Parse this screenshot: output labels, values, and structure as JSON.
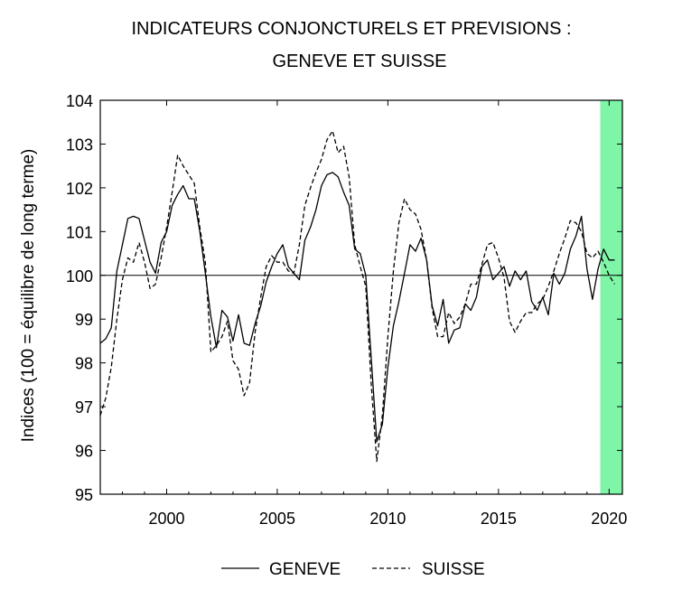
{
  "chart_data": {
    "type": "line",
    "title": "INDICATEURS CONJONCTURELS ET PREVISIONS :",
    "subtitle": "GENEVE ET SUISSE",
    "ylabel": "Indices (100 = équilibre de long terme)",
    "xlabel": "",
    "xlim": [
      1997,
      2020.6
    ],
    "ylim": [
      95,
      104
    ],
    "x_ticks": [
      "2000",
      "2005",
      "2010",
      "2015",
      "2020"
    ],
    "y_ticks": [
      "95",
      "96",
      "97",
      "98",
      "99",
      "100",
      "101",
      "102",
      "103",
      "104"
    ],
    "reference_line": 100,
    "forecast_band": [
      2019.6,
      2020.6
    ],
    "forecast_band_color": "#7ff5a8",
    "grid": false,
    "legend_position": "bottom-center",
    "series": [
      {
        "name": "GENEVE",
        "style": "solid",
        "color": "#000000",
        "x": [
          1997.0,
          1997.25,
          1997.5,
          1997.75,
          1998.0,
          1998.25,
          1998.5,
          1998.75,
          1999.0,
          1999.25,
          1999.5,
          1999.75,
          2000.0,
          2000.25,
          2000.5,
          2000.75,
          2001.0,
          2001.25,
          2001.5,
          2001.75,
          2002.0,
          2002.25,
          2002.5,
          2002.75,
          2003.0,
          2003.25,
          2003.5,
          2003.75,
          2004.0,
          2004.25,
          2004.5,
          2004.75,
          2005.0,
          2005.25,
          2005.5,
          2005.75,
          2006.0,
          2006.25,
          2006.5,
          2006.75,
          2007.0,
          2007.25,
          2007.5,
          2007.75,
          2008.0,
          2008.25,
          2008.5,
          2008.75,
          2009.0,
          2009.25,
          2009.5,
          2009.75,
          2010.0,
          2010.25,
          2010.5,
          2010.75,
          2011.0,
          2011.25,
          2011.5,
          2011.75,
          2012.0,
          2012.25,
          2012.5,
          2012.75,
          2013.0,
          2013.25,
          2013.5,
          2013.75,
          2014.0,
          2014.25,
          2014.5,
          2014.75,
          2015.0,
          2015.25,
          2015.5,
          2015.75,
          2016.0,
          2016.25,
          2016.5,
          2016.75,
          2017.0,
          2017.25,
          2017.5,
          2017.75,
          2018.0,
          2018.25,
          2018.5,
          2018.75,
          2019.0,
          2019.25,
          2019.5,
          2019.75,
          2020.0,
          2020.25
        ],
        "values": [
          98.45,
          98.55,
          98.8,
          100.1,
          100.7,
          101.3,
          101.35,
          101.3,
          100.8,
          100.3,
          100.05,
          100.75,
          101.0,
          101.6,
          101.85,
          102.05,
          101.75,
          101.75,
          101.0,
          100.05,
          99.05,
          98.35,
          99.2,
          99.05,
          98.5,
          99.1,
          98.45,
          98.4,
          98.9,
          99.3,
          99.85,
          100.2,
          100.5,
          100.7,
          100.2,
          100.05,
          99.9,
          100.8,
          101.1,
          101.5,
          102.05,
          102.3,
          102.35,
          102.25,
          101.9,
          101.6,
          100.6,
          100.5,
          100.0,
          98.1,
          96.2,
          96.6,
          97.9,
          98.85,
          99.4,
          100.05,
          100.7,
          100.55,
          100.85,
          100.35,
          99.3,
          98.85,
          99.45,
          98.45,
          98.75,
          98.8,
          99.35,
          99.2,
          99.5,
          100.2,
          100.35,
          99.9,
          100.05,
          100.2,
          99.75,
          100.1,
          99.9,
          100.1,
          99.4,
          99.2,
          99.5,
          99.1,
          100.05,
          99.8,
          100.05,
          100.6,
          100.9,
          101.35,
          100.15,
          99.45,
          100.15,
          100.6,
          100.35,
          100.35
        ]
      },
      {
        "name": "SUISSE",
        "style": "dashed",
        "color": "#000000",
        "x": [
          1997.0,
          1997.25,
          1997.5,
          1997.75,
          1998.0,
          1998.25,
          1998.5,
          1998.75,
          1999.0,
          1999.25,
          1999.5,
          1999.75,
          2000.0,
          2000.25,
          2000.5,
          2000.75,
          2001.0,
          2001.25,
          2001.5,
          2001.75,
          2002.0,
          2002.25,
          2002.5,
          2002.75,
          2003.0,
          2003.25,
          2003.5,
          2003.75,
          2004.0,
          2004.25,
          2004.5,
          2004.75,
          2005.0,
          2005.25,
          2005.5,
          2005.75,
          2006.0,
          2006.25,
          2006.5,
          2006.75,
          2007.0,
          2007.25,
          2007.5,
          2007.75,
          2008.0,
          2008.25,
          2008.5,
          2008.75,
          2009.0,
          2009.25,
          2009.5,
          2009.75,
          2010.0,
          2010.25,
          2010.5,
          2010.75,
          2011.0,
          2011.25,
          2011.5,
          2011.75,
          2012.0,
          2012.25,
          2012.5,
          2012.75,
          2013.0,
          2013.25,
          2013.5,
          2013.75,
          2014.0,
          2014.25,
          2014.5,
          2014.75,
          2015.0,
          2015.25,
          2015.5,
          2015.75,
          2016.0,
          2016.25,
          2016.5,
          2016.75,
          2017.0,
          2017.25,
          2017.5,
          2017.75,
          2018.0,
          2018.25,
          2018.5,
          2018.75,
          2019.0,
          2019.25,
          2019.5,
          2019.75,
          2020.0,
          2020.25
        ],
        "values": [
          96.8,
          97.2,
          97.9,
          99.0,
          99.9,
          100.4,
          100.3,
          100.75,
          100.3,
          99.7,
          99.8,
          100.4,
          101.1,
          101.9,
          102.75,
          102.5,
          102.3,
          102.1,
          101.1,
          100.3,
          98.25,
          98.4,
          98.6,
          98.95,
          98.05,
          97.85,
          97.25,
          97.55,
          98.7,
          99.5,
          100.2,
          100.45,
          100.3,
          100.3,
          100.1,
          100.05,
          100.7,
          101.6,
          102.0,
          102.35,
          102.65,
          103.1,
          103.3,
          102.8,
          102.95,
          102.25,
          100.7,
          100.2,
          99.75,
          97.5,
          95.75,
          96.8,
          98.6,
          100.1,
          101.2,
          101.75,
          101.5,
          101.4,
          101.05,
          100.35,
          99.25,
          98.6,
          98.6,
          99.15,
          98.9,
          99.05,
          99.35,
          99.8,
          99.8,
          100.25,
          100.7,
          100.75,
          100.4,
          99.95,
          98.95,
          98.7,
          98.95,
          99.15,
          99.15,
          99.35,
          99.45,
          99.75,
          100.1,
          100.5,
          100.85,
          101.25,
          101.2,
          101.0,
          100.5,
          100.4,
          100.55,
          100.3,
          100.0,
          99.8
        ]
      }
    ]
  }
}
